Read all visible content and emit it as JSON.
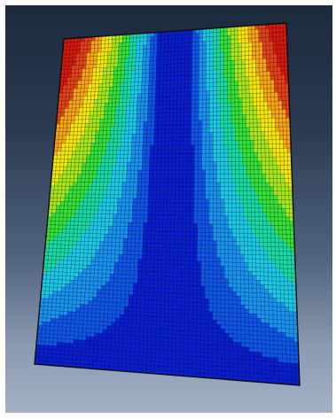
{
  "viewport": {
    "background_top": "#1c2a3e",
    "background_bottom": "#a4b1c6"
  },
  "plot": {
    "type": "contour-mesh",
    "colormap": [
      "#0a1fd2",
      "#0f55e8",
      "#1a92f0",
      "#1dc8e6",
      "#19d9a4",
      "#36e03a",
      "#a6e61c",
      "#f4e60e",
      "#f7a418",
      "#e2431a",
      "#d41a10"
    ],
    "mesh_color": "#000000",
    "mesh_columns": 64,
    "mesh_rows": 84
  }
}
